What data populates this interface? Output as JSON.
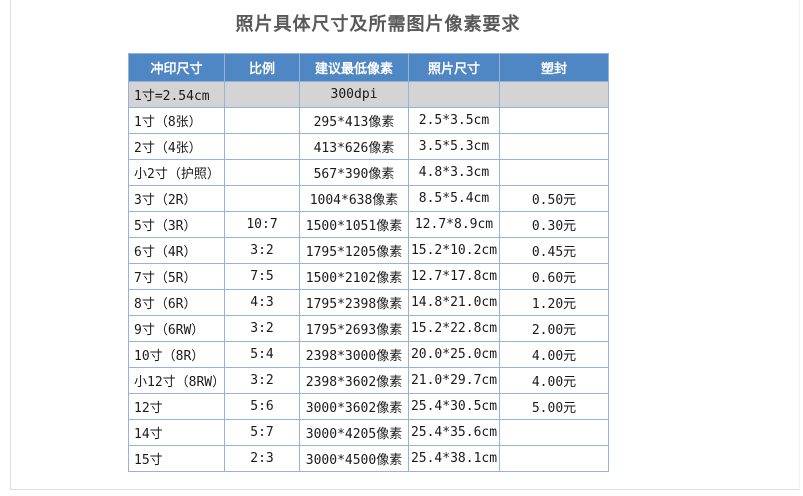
{
  "page": {
    "title": "照片具体尺寸及所需图片像素要求"
  },
  "colors": {
    "header_bg": "#4f86c4",
    "header_text": "#ffffff",
    "border": "#95b3d7",
    "highlight_row_bg": "#d5d4d4",
    "title_color": "#595959",
    "cell_text": "#1a1a1a",
    "frame_border": "#dddddd"
  },
  "table": {
    "headers": [
      "冲印尺寸",
      "比例",
      "建议最低像素",
      "照片尺寸",
      "塑封"
    ],
    "column_keys": [
      "print-size",
      "ratio",
      "min-pixels",
      "photo-size",
      "laminate"
    ],
    "rows": [
      {
        "highlight": true,
        "cells": [
          "1寸=2.54cm",
          "",
          "300dpi",
          "",
          ""
        ]
      },
      {
        "cells": [
          "1寸（8张）",
          "",
          "295*413像素",
          "2.5*3.5cm",
          ""
        ]
      },
      {
        "cells": [
          "2寸（4张）",
          "",
          "413*626像素",
          "3.5*5.3cm",
          ""
        ]
      },
      {
        "cells": [
          "小2寸（护照）",
          "",
          "567*390像素",
          "4.8*3.3cm",
          ""
        ]
      },
      {
        "cells": [
          "3寸（2R）",
          "",
          "1004*638像素",
          "8.5*5.4cm",
          "0.50元"
        ]
      },
      {
        "cells": [
          "5寸（3R）",
          "10:7",
          "1500*1051像素",
          "12.7*8.9cm",
          "0.30元"
        ]
      },
      {
        "cells": [
          "6寸（4R）",
          "3:2",
          "1795*1205像素",
          "15.2*10.2cm",
          "0.45元"
        ]
      },
      {
        "cells": [
          "7寸（5R）",
          "7:5",
          "1500*2102像素",
          "12.7*17.8cm",
          "0.60元"
        ]
      },
      {
        "cells": [
          "8寸（6R）",
          "4:3",
          "1795*2398像素",
          "14.8*21.0cm",
          "1.20元"
        ]
      },
      {
        "cells": [
          "9寸（6RW）",
          "3:2",
          "1795*2693像素",
          "15.2*22.8cm",
          "2.00元"
        ]
      },
      {
        "cells": [
          "10寸（8R）",
          "5:4",
          "2398*3000像素",
          "20.0*25.0cm",
          "4.00元"
        ]
      },
      {
        "cells": [
          "小12寸（8RW）",
          "3:2",
          "2398*3602像素",
          "21.0*29.7cm",
          "4.00元"
        ]
      },
      {
        "cells": [
          "12寸",
          "5:6",
          "3000*3602像素",
          "25.4*30.5cm",
          "5.00元"
        ]
      },
      {
        "cells": [
          "14寸",
          "5:7",
          "3000*4205像素",
          "25.4*35.6cm",
          ""
        ]
      },
      {
        "cells": [
          "15寸",
          "2:3",
          "3000*4500像素",
          "25.4*38.1cm",
          ""
        ]
      }
    ]
  }
}
